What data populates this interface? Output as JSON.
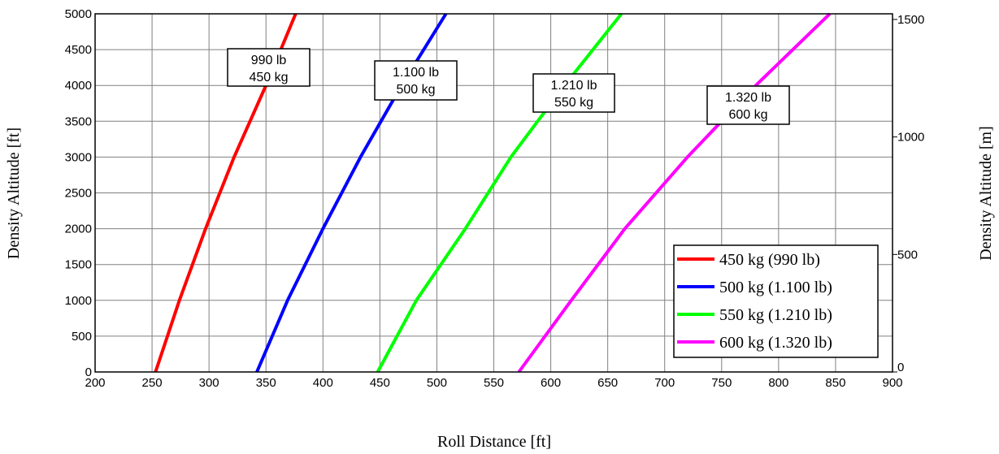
{
  "chart_data": {
    "type": "line",
    "title": "",
    "xlabel": "Roll Distance [ft]",
    "ylabel": "Density Altitude [ft]",
    "y2label": "Density Altitude [m]",
    "xlim": [
      200,
      900
    ],
    "ylim": [
      0,
      5000
    ],
    "y2lim": [
      0,
      1524
    ],
    "grid": true,
    "legend_position": "bottom-right",
    "x_ticks": [
      "200",
      "250",
      "300",
      "350",
      "400",
      "450",
      "500",
      "550",
      "600",
      "650",
      "700",
      "750",
      "800",
      "850",
      "900"
    ],
    "y_ticks": [
      "0",
      "500",
      "1000",
      "1500",
      "2000",
      "2500",
      "3000",
      "3500",
      "4000",
      "4500",
      "5000"
    ],
    "y2_ticks": [
      "0",
      "500",
      "1000",
      "1500"
    ],
    "series": [
      {
        "name": "450 kg (990 lb)",
        "color": "#ff0000",
        "points": [
          [
            253,
            0
          ],
          [
            274,
            1000
          ],
          [
            297,
            2000
          ],
          [
            322,
            3000
          ],
          [
            350,
            4000
          ],
          [
            376,
            5000
          ]
        ]
      },
      {
        "name": "500 kg (1.100 lb)",
        "color": "#0000ff",
        "points": [
          [
            342,
            0
          ],
          [
            369,
            1000
          ],
          [
            400,
            2000
          ],
          [
            433,
            3000
          ],
          [
            469,
            4000
          ],
          [
            508,
            5000
          ]
        ]
      },
      {
        "name": "550 kg (1.210 lb)",
        "color": "#00ff00",
        "points": [
          [
            448,
            0
          ],
          [
            482,
            1000
          ],
          [
            525,
            2000
          ],
          [
            565,
            3000
          ],
          [
            612,
            4000
          ],
          [
            662,
            5000
          ]
        ]
      },
      {
        "name": "600 kg (1.320 lb)",
        "color": "#ff00ff",
        "points": [
          [
            572,
            0
          ],
          [
            618,
            1000
          ],
          [
            665,
            2000
          ],
          [
            720,
            3000
          ],
          [
            780,
            4000
          ],
          [
            845,
            5000
          ]
        ]
      }
    ],
    "annotations": [
      {
        "line1": "990 lb",
        "line2": "450 kg"
      },
      {
        "line1": "1.100 lb",
        "line2": "500 kg"
      },
      {
        "line1": "1.210 lb",
        "line2": "550 kg"
      },
      {
        "line1": "1.320 lb",
        "line2": "600 kg"
      }
    ]
  }
}
